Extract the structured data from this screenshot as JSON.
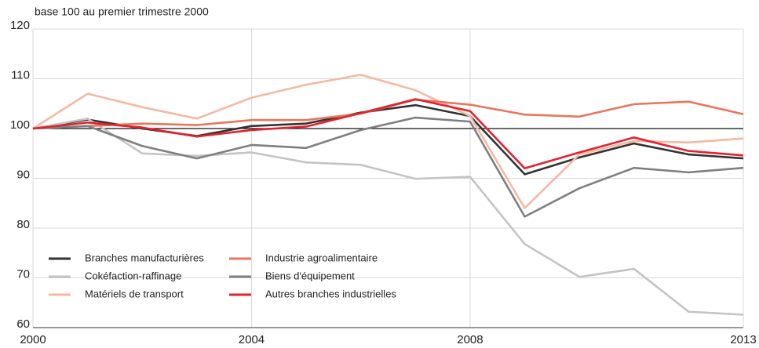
{
  "chart_data": {
    "type": "line",
    "title": "base 100 au premier trimestre 2000",
    "x": [
      2000,
      2001,
      2002,
      2003,
      2004,
      2005,
      2006,
      2007,
      2008,
      2009,
      2010,
      2011,
      2012,
      2013
    ],
    "series": [
      {
        "name": "Branches manufacturières",
        "color": "#333333",
        "values": [
          100,
          101.8,
          100,
          98.5,
          100.5,
          101,
          103.2,
          104.7,
          102.5,
          90.8,
          94.2,
          97,
          94.8,
          94
        ]
      },
      {
        "name": "Cokéfaction-raffinage",
        "color": "#c4c4c4",
        "values": [
          100,
          102,
          95,
          94.5,
          95.2,
          93.2,
          92.7,
          89.9,
          90.3,
          76.8,
          70.2,
          71.8,
          63.2,
          62.6
        ]
      },
      {
        "name": "Matériels de transport",
        "color": "#f4b9a2",
        "values": [
          100,
          107,
          104.3,
          102,
          106.2,
          108.8,
          110.8,
          107.7,
          102.5,
          84,
          94.8,
          97.5,
          97.2,
          98
        ]
      },
      {
        "name": "Industrie agroalimentaire",
        "color": "#e8755c",
        "values": [
          100,
          100.5,
          101,
          100.7,
          101.7,
          101.7,
          103,
          105.8,
          104.8,
          102.8,
          102.4,
          104.9,
          105.4,
          102.9
        ]
      },
      {
        "name": "Biens d'équipement",
        "color": "#7f7f7f",
        "values": [
          100,
          100.5,
          96.5,
          94,
          96.7,
          96.1,
          99.7,
          102.2,
          101.4,
          82.3,
          88,
          92.1,
          91.2,
          92.1
        ]
      },
      {
        "name": "Autres branches industrielles",
        "color": "#e2222e",
        "values": [
          100,
          101.2,
          100.2,
          98.4,
          99.7,
          100.4,
          103.1,
          105.9,
          103.5,
          92,
          95.2,
          98.2,
          95.5,
          94.6
        ]
      }
    ],
    "xlim": [
      2000,
      2013
    ],
    "xticks": [
      2000,
      2004,
      2008,
      2013
    ],
    "ylim": [
      60,
      120
    ],
    "yticks": [
      60,
      70,
      80,
      90,
      100,
      110,
      120
    ],
    "reference_line": 100,
    "grid": true,
    "legend": "lower left"
  }
}
